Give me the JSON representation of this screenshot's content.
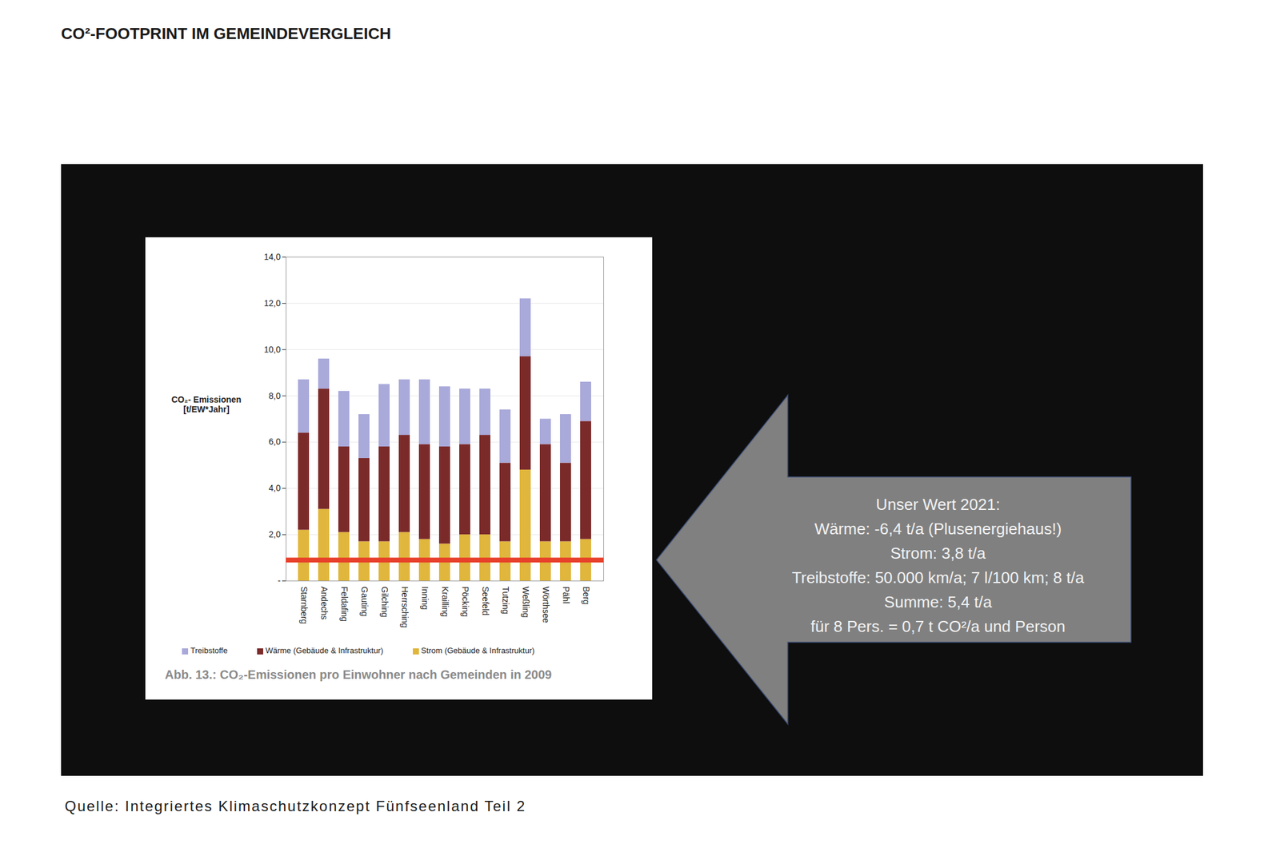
{
  "page": {
    "title": "CO²-FOOTPRINT IM GEMEINDEVERGLEICH",
    "source": "Quelle: Integriertes Klimaschutzkonzept Fünfseenland Teil 2"
  },
  "chart_data": {
    "type": "bar",
    "stacked": true,
    "title": "Abb. 13.: CO₂-Emissionen pro Einwohner nach Gemeinden in 2009",
    "ylabel": "CO₂- Emissionen\n[t/EW*Jahr]",
    "categories": [
      "Starnberg",
      "Andechs",
      "Feldafing",
      "Gauting",
      "Gilching",
      "Herrsching",
      "Inning",
      "Krailling",
      "Pöcking",
      "Seefeld",
      "Tutzing",
      "Weßling",
      "Wörthsee",
      "Pähl",
      "Berg"
    ],
    "series": [
      {
        "name": "Treibstoffe",
        "color": "#a9a9da",
        "values": [
          2.3,
          1.3,
          2.4,
          1.9,
          2.7,
          2.4,
          2.8,
          2.6,
          2.4,
          2.0,
          2.3,
          2.5,
          1.1,
          2.1,
          1.7
        ]
      },
      {
        "name": "Wärme (Gebäude & Infrastruktur)",
        "color": "#7b2a2a",
        "values": [
          4.2,
          5.2,
          3.7,
          3.6,
          4.1,
          4.2,
          4.1,
          4.2,
          3.9,
          4.3,
          3.4,
          4.9,
          4.2,
          3.4,
          5.1
        ]
      },
      {
        "name": "Strom (Gebäude & Infrastruktur)",
        "color": "#e0b63c",
        "values": [
          2.2,
          3.1,
          2.1,
          1.7,
          1.7,
          2.1,
          1.8,
          1.6,
          2.0,
          2.0,
          1.7,
          4.8,
          1.7,
          1.7,
          1.8
        ]
      }
    ],
    "ylim": [
      0,
      14
    ],
    "yticks": [
      {
        "value": 0,
        "label": "-"
      },
      {
        "value": 2,
        "label": "2,0"
      },
      {
        "value": 4,
        "label": "4,0"
      },
      {
        "value": 6,
        "label": "6,0"
      },
      {
        "value": 8,
        "label": "8,0"
      },
      {
        "value": 10,
        "label": "10,0"
      },
      {
        "value": 12,
        "label": "12,0"
      },
      {
        "value": 14,
        "label": "14,0"
      }
    ],
    "grid": true,
    "legend": "bottom",
    "reference_line": {
      "value": 0.9,
      "color": "#e8402a"
    },
    "annotation": [
      "Unser Wert 2021:",
      "Wärme: -6,4 t/a (Plusenergiehaus!)",
      "Strom: 3,8 t/a",
      "Treibstoffe: 50.000 km/a; 7 l/100 km; 8 t/a",
      "Summe: 5,4 t/a",
      "für 8 Pers. = 0,7 t CO²/a und Person"
    ]
  }
}
